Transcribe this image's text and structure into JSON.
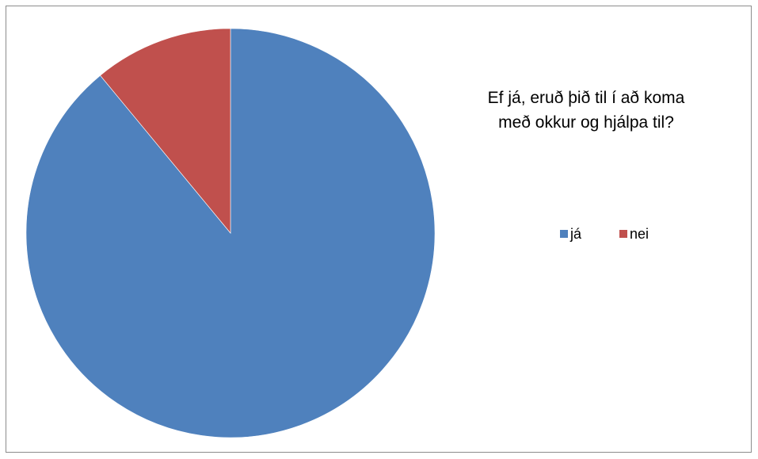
{
  "chart_data": {
    "type": "pie",
    "title": "Ef já, eruð þið til í að koma\nmeð okkur og hjálpa til?",
    "categories": [
      "já",
      "nei"
    ],
    "values": [
      89,
      11
    ],
    "colors": [
      "#4f81bd",
      "#c0504d"
    ],
    "legend_position": "right",
    "start_angle": "12 o'clock, clockwise"
  }
}
